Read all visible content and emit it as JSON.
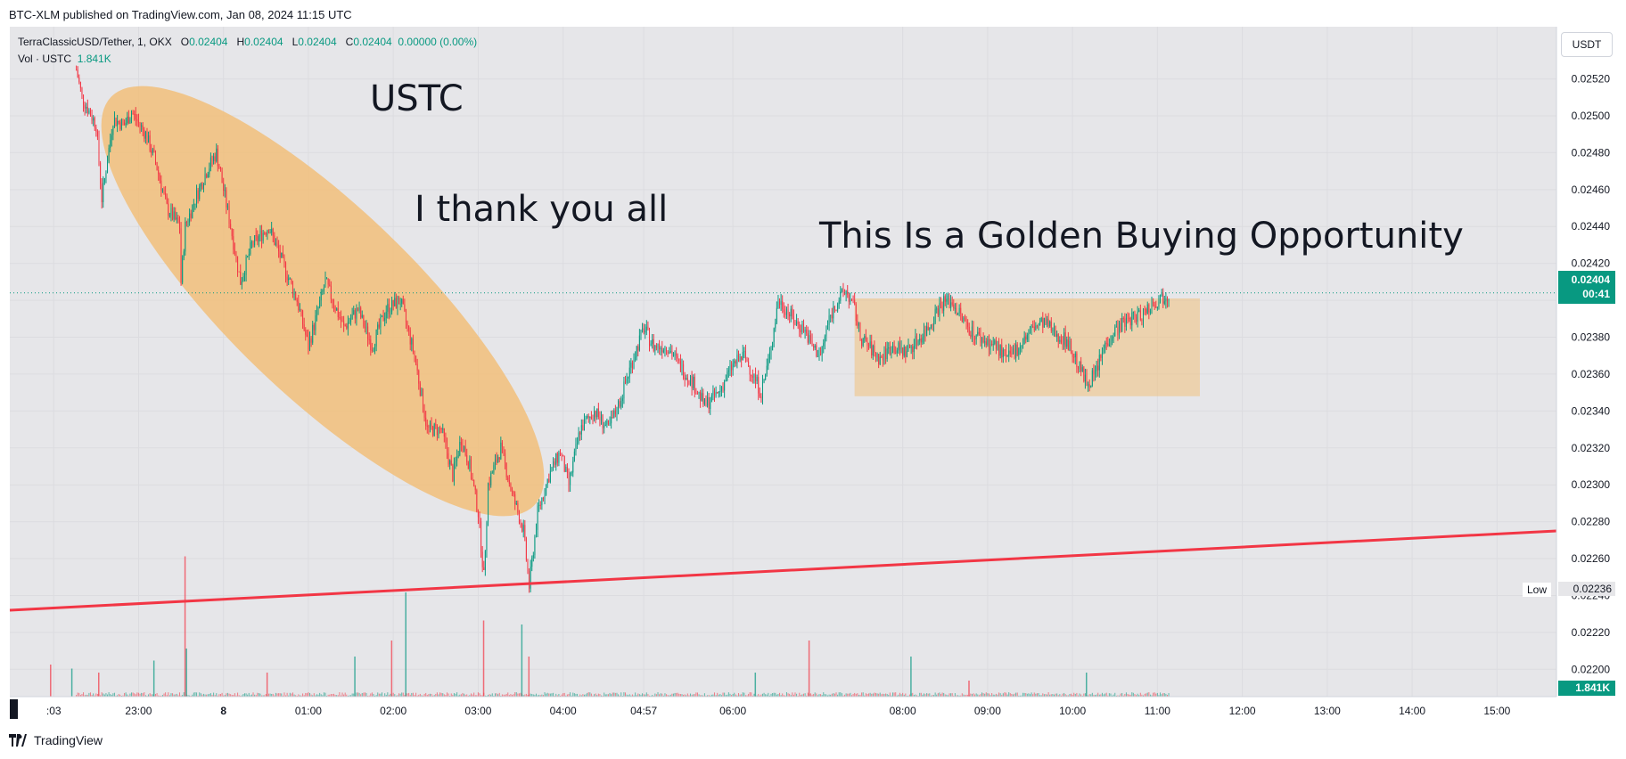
{
  "header": {
    "caption": "BTC-XLM published on TradingView.com, Jan 08, 2024 11:15 UTC"
  },
  "legend": {
    "symbol": "TerraClassicUSD/Tether, 1, OKX",
    "open_label": "O",
    "open": "0.02404",
    "high_label": "H",
    "high": "0.02404",
    "low_label": "L",
    "low": "0.02404",
    "close_label": "C",
    "close": "0.02404",
    "change": "0.00000 (0.00%)",
    "volume_label": "Vol · USTC",
    "volume": "1.841K"
  },
  "currency_button": "USDT",
  "annotations": {
    "ustc": "USTC",
    "thank": "I thank you all",
    "golden": "This Is a Golden Buying Opportunity"
  },
  "last_price": {
    "value": "0.02404",
    "countdown": "00:41"
  },
  "low_marker": {
    "label": "Low",
    "value": "0.02236"
  },
  "volume_tag": "1.841K",
  "brand": "TradingView",
  "colors": {
    "up": "#089981",
    "down": "#f23645",
    "highlight": "#f2bd73",
    "trendline": "#f23645",
    "background": "#e6e6e9"
  },
  "chart_data": {
    "type": "candlestick",
    "symbol": "TerraClassicUSD/Tether",
    "interval": "1",
    "exchange": "OKX",
    "ylim": [
      0.0219,
      0.02528
    ],
    "y_ticks": [
      "0.02200",
      "0.02220",
      "0.02240",
      "0.02260",
      "0.02280",
      "0.02300",
      "0.02320",
      "0.02340",
      "0.02360",
      "0.02380",
      "0.02400",
      "0.02420",
      "0.02440",
      "0.02460",
      "0.02480",
      "0.02500",
      "0.02520"
    ],
    "x_ticks": [
      {
        "label": ":03",
        "t": -60
      },
      {
        "label": "23:00",
        "t": 0
      },
      {
        "label": "8",
        "t": 60
      },
      {
        "label": "01:00",
        "t": 120
      },
      {
        "label": "02:00",
        "t": 180
      },
      {
        "label": "03:00",
        "t": 240
      },
      {
        "label": "04:00",
        "t": 300
      },
      {
        "label": "04:57",
        "t": 357
      },
      {
        "label": "06:00",
        "t": 420
      },
      {
        "label": "08:00",
        "t": 540
      },
      {
        "label": "09:00",
        "t": 600
      },
      {
        "label": "10:00",
        "t": 660
      },
      {
        "label": "11:00",
        "t": 720
      },
      {
        "label": "12:00",
        "t": 780
      },
      {
        "label": "13:00",
        "t": 840
      },
      {
        "label": "14:00",
        "t": 900
      },
      {
        "label": "15:00",
        "t": 960
      }
    ],
    "t_range": [
      -91,
      1002
    ],
    "price_path": [
      {
        "t": -44,
        "price": 0.02525
      },
      {
        "t": -40,
        "price": 0.0251
      },
      {
        "t": -30,
        "price": 0.02495
      },
      {
        "t": -26,
        "price": 0.02455
      },
      {
        "t": -18,
        "price": 0.02498
      },
      {
        "t": -10,
        "price": 0.02495
      },
      {
        "t": -5,
        "price": 0.02502
      },
      {
        "t": 5,
        "price": 0.0249
      },
      {
        "t": 12,
        "price": 0.02475
      },
      {
        "t": 20,
        "price": 0.0245
      },
      {
        "t": 29,
        "price": 0.0244
      },
      {
        "t": 30,
        "price": 0.0241
      },
      {
        "t": 33,
        "price": 0.0244
      },
      {
        "t": 40,
        "price": 0.02455
      },
      {
        "t": 48,
        "price": 0.0247
      },
      {
        "t": 55,
        "price": 0.0248
      },
      {
        "t": 65,
        "price": 0.0244
      },
      {
        "t": 72,
        "price": 0.0241
      },
      {
        "t": 80,
        "price": 0.0243
      },
      {
        "t": 92,
        "price": 0.0244
      },
      {
        "t": 102,
        "price": 0.0242
      },
      {
        "t": 112,
        "price": 0.024
      },
      {
        "t": 120,
        "price": 0.02375
      },
      {
        "t": 132,
        "price": 0.0241
      },
      {
        "t": 145,
        "price": 0.02385
      },
      {
        "t": 155,
        "price": 0.02395
      },
      {
        "t": 165,
        "price": 0.02375
      },
      {
        "t": 175,
        "price": 0.02395
      },
      {
        "t": 185,
        "price": 0.024
      },
      {
        "t": 195,
        "price": 0.0237
      },
      {
        "t": 204,
        "price": 0.0233
      },
      {
        "t": 214,
        "price": 0.0233
      },
      {
        "t": 222,
        "price": 0.02305
      },
      {
        "t": 228,
        "price": 0.02325
      },
      {
        "t": 234,
        "price": 0.0231
      },
      {
        "t": 240,
        "price": 0.02285
      },
      {
        "t": 244,
        "price": 0.0225
      },
      {
        "t": 247,
        "price": 0.023
      },
      {
        "t": 256,
        "price": 0.0232
      },
      {
        "t": 264,
        "price": 0.02295
      },
      {
        "t": 272,
        "price": 0.02275
      },
      {
        "t": 276,
        "price": 0.02245
      },
      {
        "t": 282,
        "price": 0.02285
      },
      {
        "t": 290,
        "price": 0.02305
      },
      {
        "t": 298,
        "price": 0.02318
      },
      {
        "t": 304,
        "price": 0.023
      },
      {
        "t": 312,
        "price": 0.0233
      },
      {
        "t": 322,
        "price": 0.0234
      },
      {
        "t": 332,
        "price": 0.0233
      },
      {
        "t": 340,
        "price": 0.02345
      },
      {
        "t": 348,
        "price": 0.02365
      },
      {
        "t": 357,
        "price": 0.02385
      },
      {
        "t": 364,
        "price": 0.02375
      },
      {
        "t": 374,
        "price": 0.02375
      },
      {
        "t": 382,
        "price": 0.02365
      },
      {
        "t": 392,
        "price": 0.02355
      },
      {
        "t": 400,
        "price": 0.02343
      },
      {
        "t": 410,
        "price": 0.0235
      },
      {
        "t": 420,
        "price": 0.02365
      },
      {
        "t": 428,
        "price": 0.0237
      },
      {
        "t": 434,
        "price": 0.0236
      },
      {
        "t": 440,
        "price": 0.0235
      },
      {
        "t": 446,
        "price": 0.0237
      },
      {
        "t": 452,
        "price": 0.024
      },
      {
        "t": 458,
        "price": 0.02395
      },
      {
        "t": 464,
        "price": 0.02388
      },
      {
        "t": 470,
        "price": 0.02385
      },
      {
        "t": 476,
        "price": 0.02375
      },
      {
        "t": 482,
        "price": 0.0237
      },
      {
        "t": 488,
        "price": 0.0239
      },
      {
        "t": 494,
        "price": 0.024
      },
      {
        "t": 500,
        "price": 0.02405
      },
      {
        "t": 506,
        "price": 0.02395
      },
      {
        "t": 510,
        "price": 0.0238
      },
      {
        "t": 516,
        "price": 0.02375
      },
      {
        "t": 524,
        "price": 0.02368
      },
      {
        "t": 532,
        "price": 0.02375
      },
      {
        "t": 542,
        "price": 0.02372
      },
      {
        "t": 550,
        "price": 0.02378
      },
      {
        "t": 558,
        "price": 0.02385
      },
      {
        "t": 564,
        "price": 0.02395
      },
      {
        "t": 570,
        "price": 0.024
      },
      {
        "t": 576,
        "price": 0.02398
      },
      {
        "t": 582,
        "price": 0.0239
      },
      {
        "t": 590,
        "price": 0.02382
      },
      {
        "t": 598,
        "price": 0.02378
      },
      {
        "t": 606,
        "price": 0.02375
      },
      {
        "t": 614,
        "price": 0.02368
      },
      {
        "t": 622,
        "price": 0.02375
      },
      {
        "t": 632,
        "price": 0.02385
      },
      {
        "t": 640,
        "price": 0.02388
      },
      {
        "t": 648,
        "price": 0.02382
      },
      {
        "t": 656,
        "price": 0.02378
      },
      {
        "t": 664,
        "price": 0.02365
      },
      {
        "t": 670,
        "price": 0.02355
      },
      {
        "t": 676,
        "price": 0.0236
      },
      {
        "t": 684,
        "price": 0.02378
      },
      {
        "t": 692,
        "price": 0.02385
      },
      {
        "t": 700,
        "price": 0.0239
      },
      {
        "t": 708,
        "price": 0.02392
      },
      {
        "t": 716,
        "price": 0.02398
      },
      {
        "t": 724,
        "price": 0.02402
      },
      {
        "t": 728,
        "price": 0.02404
      }
    ],
    "volume_spikes": [
      {
        "t": -62,
        "v": 0.8
      },
      {
        "t": -47,
        "v": 0.7
      },
      {
        "t": -28,
        "v": 0.6
      },
      {
        "t": 11,
        "v": 0.9
      },
      {
        "t": 33,
        "v": 3.5
      },
      {
        "t": 34,
        "v": 1.2
      },
      {
        "t": 91,
        "v": 0.6
      },
      {
        "t": 153,
        "v": 1.0
      },
      {
        "t": 179,
        "v": 1.4
      },
      {
        "t": 189,
        "v": 2.6
      },
      {
        "t": 244,
        "v": 1.9
      },
      {
        "t": 271,
        "v": 1.8
      },
      {
        "t": 276,
        "v": 1.0
      },
      {
        "t": 436,
        "v": 0.6
      },
      {
        "t": 474,
        "v": 1.4
      },
      {
        "t": 546,
        "v": 1.0
      },
      {
        "t": 587,
        "v": 0.4
      },
      {
        "t": 670,
        "v": 0.6
      }
    ],
    "trendline": [
      {
        "t": -91,
        "price": 0.02232
      },
      {
        "t": 1002,
        "price": 0.02275
      }
    ],
    "horizontal_line_price": 0.02404,
    "highlight_ellipse": {
      "label": "USTC decline"
    },
    "highlight_rect": {
      "t_start": 506,
      "t_end": 750,
      "price_top": 0.02401,
      "price_bottom": 0.02348
    }
  }
}
